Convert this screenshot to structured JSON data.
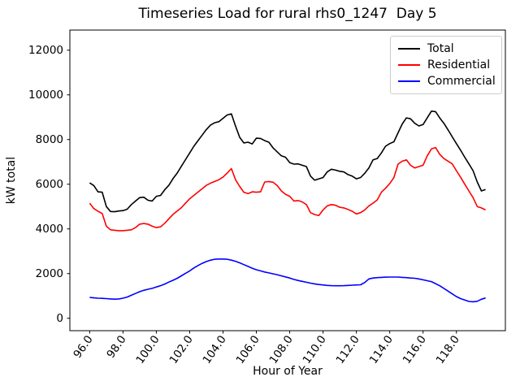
{
  "figure": {
    "title": "Timeseries Load for rural rhs0_1247  Day 5",
    "xlabel": "Hour of Year",
    "ylabel": "kW total"
  },
  "chart_data": {
    "type": "line",
    "title": "Timeseries Load for rural rhs0_1247  Day 5",
    "xlabel": "Hour of Year",
    "ylabel": "kW total",
    "x_start": 96.0,
    "x_step": 0.25,
    "x_count": 96,
    "xlim": [
      94.8125,
      120.9375
    ],
    "ylim": [
      -556,
      12900
    ],
    "grid": false,
    "legend_position": "upper right",
    "xticks": [
      96.0,
      98.0,
      100.0,
      102.0,
      104.0,
      106.0,
      108.0,
      110.0,
      112.0,
      114.0,
      116.0,
      118.0
    ],
    "xtick_labels": [
      "96.0",
      "98.0",
      "100.0",
      "102.0",
      "104.0",
      "106.0",
      "108.0",
      "110.0",
      "112.0",
      "114.0",
      "116.0",
      "118.0"
    ],
    "xtick_rotation_deg": 55,
    "yticks": [
      0,
      2000,
      4000,
      6000,
      8000,
      10000,
      12000
    ],
    "ytick_labels": [
      "0",
      "2000",
      "4000",
      "6000",
      "8000",
      "10000",
      "12000"
    ],
    "series": [
      {
        "name": "Total",
        "color": "#000000",
        "values": [
          6060,
          5940,
          5660,
          5640,
          5000,
          4780,
          4770,
          4800,
          4820,
          4880,
          5090,
          5250,
          5400,
          5420,
          5280,
          5250,
          5460,
          5500,
          5750,
          5950,
          6250,
          6500,
          6800,
          7100,
          7400,
          7700,
          7950,
          8200,
          8450,
          8650,
          8750,
          8800,
          8950,
          9100,
          9150,
          8600,
          8100,
          7850,
          7880,
          7800,
          8060,
          8050,
          7950,
          7880,
          7630,
          7450,
          7270,
          7210,
          6970,
          6900,
          6910,
          6850,
          6790,
          6360,
          6180,
          6240,
          6300,
          6550,
          6670,
          6630,
          6580,
          6550,
          6430,
          6360,
          6240,
          6300,
          6490,
          6730,
          7090,
          7150,
          7400,
          7700,
          7820,
          7900,
          8300,
          8700,
          8970,
          8930,
          8730,
          8610,
          8670,
          8970,
          9270,
          9250,
          8970,
          8730,
          8430,
          8120,
          7820,
          7520,
          7210,
          6910,
          6610,
          6100,
          5700,
          5760
        ]
      },
      {
        "name": "Residential",
        "color": "#ff0000",
        "values": [
          5150,
          4910,
          4790,
          4690,
          4120,
          3960,
          3940,
          3920,
          3920,
          3940,
          3960,
          4060,
          4210,
          4240,
          4210,
          4120,
          4060,
          4090,
          4250,
          4450,
          4650,
          4800,
          4950,
          5150,
          5350,
          5500,
          5650,
          5800,
          5950,
          6050,
          6120,
          6200,
          6320,
          6500,
          6700,
          6200,
          5900,
          5640,
          5580,
          5660,
          5640,
          5660,
          6100,
          6120,
          6090,
          5940,
          5700,
          5550,
          5460,
          5250,
          5270,
          5210,
          5090,
          4730,
          4640,
          4600,
          4850,
          5030,
          5090,
          5060,
          4970,
          4940,
          4870,
          4790,
          4670,
          4730,
          4850,
          5030,
          5150,
          5300,
          5640,
          5820,
          6030,
          6300,
          6900,
          7030,
          7090,
          6850,
          6730,
          6790,
          6850,
          7270,
          7580,
          7640,
          7340,
          7150,
          7030,
          6910,
          6610,
          6310,
          6000,
          5700,
          5400,
          5000,
          4940,
          4850
        ]
      },
      {
        "name": "Commercial",
        "color": "#0000ff",
        "values": [
          930,
          915,
          900,
          890,
          880,
          865,
          855,
          865,
          900,
          950,
          1030,
          1110,
          1190,
          1250,
          1300,
          1340,
          1400,
          1460,
          1530,
          1620,
          1700,
          1790,
          1900,
          2010,
          2120,
          2250,
          2360,
          2460,
          2540,
          2600,
          2640,
          2650,
          2650,
          2640,
          2600,
          2550,
          2480,
          2400,
          2320,
          2240,
          2170,
          2120,
          2070,
          2030,
          1990,
          1950,
          1900,
          1850,
          1800,
          1740,
          1690,
          1650,
          1610,
          1570,
          1540,
          1510,
          1490,
          1470,
          1460,
          1455,
          1455,
          1460,
          1470,
          1480,
          1490,
          1500,
          1600,
          1760,
          1800,
          1820,
          1830,
          1840,
          1845,
          1845,
          1845,
          1830,
          1820,
          1800,
          1790,
          1760,
          1720,
          1680,
          1640,
          1550,
          1455,
          1340,
          1215,
          1090,
          970,
          880,
          815,
          755,
          740,
          760,
          850,
          910
        ]
      }
    ],
    "legend": {
      "entries": [
        {
          "label": "Total",
          "color": "#000000"
        },
        {
          "label": "Residential",
          "color": "#ff0000"
        },
        {
          "label": "Commercial",
          "color": "#0000ff"
        }
      ]
    }
  }
}
